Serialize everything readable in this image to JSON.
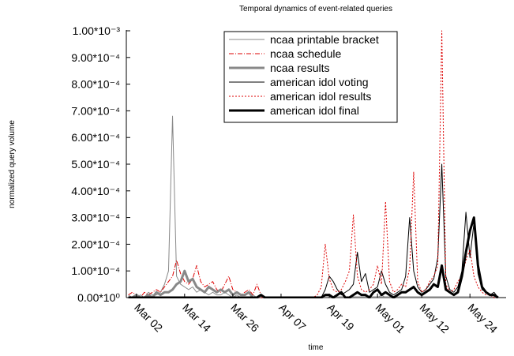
{
  "chart_data": {
    "type": "line",
    "title": "Temporal dynamics of event-related queries",
    "x_label": "time",
    "y_label": "normalized query volume",
    "legend": "upper center",
    "x": [
      -1,
      0,
      1,
      2,
      3,
      4,
      5,
      6,
      7,
      8,
      9,
      10,
      11,
      12,
      13,
      14,
      15,
      16,
      17,
      18,
      19,
      20,
      21,
      22,
      23,
      24,
      25,
      26,
      27,
      28,
      29,
      30,
      31,
      32,
      33,
      34,
      35,
      36,
      37,
      38,
      39,
      40,
      41,
      42,
      43,
      44,
      45,
      46,
      47,
      48,
      49,
      50,
      51,
      52,
      53,
      54,
      55,
      56,
      57,
      58,
      59,
      60,
      61,
      62,
      63,
      64,
      65,
      66,
      67,
      68,
      69,
      70,
      71,
      72,
      73,
      74,
      75,
      76,
      77,
      78,
      79,
      80,
      81,
      82,
      83,
      84,
      85,
      86,
      87,
      88,
      89,
      90,
      91
    ],
    "xlim": [
      -1.5,
      93
    ],
    "xticks": [
      {
        "value": 1,
        "label": "Mar 02"
      },
      {
        "value": 13,
        "label": "Mar 14"
      },
      {
        "value": 25,
        "label": "Mar 26"
      },
      {
        "value": 37,
        "label": "Apr 07"
      },
      {
        "value": 49,
        "label": "Apr 19"
      },
      {
        "value": 61,
        "label": "May 01"
      },
      {
        "value": 72,
        "label": "May 12"
      },
      {
        "value": 84,
        "label": "May 24"
      }
    ],
    "ylim": [
      0,
      0.001
    ],
    "yticks": [
      {
        "value": 0,
        "label": "0.00*10⁰"
      },
      {
        "value": 0.0001,
        "label": "1.00*10⁻⁴"
      },
      {
        "value": 0.0002,
        "label": "2.00*10⁻⁴"
      },
      {
        "value": 0.0003,
        "label": "3.00*10⁻⁴"
      },
      {
        "value": 0.0004,
        "label": "4.00*10⁻⁴"
      },
      {
        "value": 0.0005,
        "label": "5.00*10⁻⁴"
      },
      {
        "value": 0.0006,
        "label": "6.00*10⁻⁴"
      },
      {
        "value": 0.0007,
        "label": "7.00*10⁻⁴"
      },
      {
        "value": 0.0008,
        "label": "8.00*10⁻⁴"
      },
      {
        "value": 0.0009,
        "label": "9.00*10⁻⁴"
      },
      {
        "value": 0.001,
        "label": "1.00*10⁻³"
      }
    ],
    "series": [
      {
        "name": "ncaa printable bracket",
        "color": "#888888",
        "line_width": 1,
        "line_style": "solid",
        "values": [
          1e-05,
          0,
          0,
          1e-05,
          0,
          2e-05,
          1e-05,
          1e-05,
          2e-05,
          5e-05,
          0.0001,
          0.00068,
          8e-05,
          5e-05,
          4e-05,
          3e-05,
          4e-05,
          2e-05,
          3e-05,
          2e-05,
          1e-05,
          2e-05,
          1e-05,
          1e-05,
          2e-05,
          1e-05,
          0,
          1e-05,
          0,
          0,
          0,
          1e-05,
          0,
          0,
          0,
          0,
          0,
          0,
          0,
          0,
          0,
          0,
          0,
          0,
          0,
          0,
          0,
          0,
          0,
          0,
          0,
          0,
          0,
          0,
          0,
          0,
          0,
          0,
          0,
          0,
          0,
          0,
          0,
          1e-05,
          0,
          0,
          0,
          0,
          0,
          0,
          0,
          0,
          0,
          0,
          0,
          0,
          0,
          0,
          0,
          0,
          0,
          0,
          0,
          0,
          0,
          0,
          0,
          0,
          0,
          0,
          0,
          0,
          0
        ]
      },
      {
        "name": "ncaa schedule",
        "color": "#dd0000",
        "line_width": 1,
        "line_style": "dashdot",
        "values": [
          1e-05,
          2e-05,
          1e-05,
          0,
          2e-05,
          1e-05,
          2e-05,
          3e-05,
          2e-05,
          4e-05,
          6e-05,
          8e-05,
          0.00014,
          9e-05,
          6e-05,
          5e-05,
          7e-05,
          0.00012,
          6e-05,
          4e-05,
          5e-05,
          6e-05,
          3e-05,
          2e-05,
          5e-05,
          8e-05,
          3e-05,
          2e-05,
          1e-05,
          2e-05,
          3e-05,
          1e-05,
          5e-05,
          1e-05,
          0,
          0,
          0,
          0,
          0,
          0,
          0,
          0,
          0,
          0,
          0,
          0,
          0,
          0,
          0,
          0,
          0,
          0,
          0,
          0,
          0,
          0,
          0,
          0,
          0,
          0,
          0,
          0,
          0,
          0,
          0,
          0,
          0,
          0,
          0,
          0,
          0,
          0,
          0,
          0,
          0,
          0,
          0,
          0,
          0,
          0,
          0,
          0,
          0,
          0,
          0,
          0,
          0,
          0,
          0,
          0,
          0,
          0,
          0
        ]
      },
      {
        "name": "ncaa results",
        "color": "#888888",
        "line_width": 3,
        "line_style": "solid",
        "values": [
          0,
          0,
          1e-05,
          0,
          0,
          1e-05,
          0,
          2e-05,
          1e-05,
          2e-05,
          2e-05,
          3e-05,
          5e-05,
          6e-05,
          0.0001,
          6e-05,
          7e-05,
          4e-05,
          3e-05,
          2e-05,
          4e-05,
          3e-05,
          2e-05,
          3e-05,
          2e-05,
          3e-05,
          1e-05,
          2e-05,
          1e-05,
          1e-05,
          2e-05,
          0,
          0,
          0,
          0,
          0,
          0,
          0,
          0,
          0,
          0,
          0,
          0,
          0,
          0,
          0,
          0,
          0,
          0,
          0,
          0,
          0,
          0,
          0,
          0,
          0,
          0,
          0,
          0,
          0,
          0,
          0,
          0,
          0,
          0,
          0,
          0,
          0,
          0,
          0,
          0,
          0,
          0,
          0,
          0,
          0,
          0,
          0,
          0,
          0,
          0,
          0,
          0,
          0,
          0,
          0,
          0,
          0,
          0,
          0,
          0,
          0,
          0
        ]
      },
      {
        "name": "american idol voting",
        "color": "#000000",
        "line_width": 1,
        "line_style": "solid",
        "values": [
          0,
          0,
          0,
          0,
          0,
          0,
          0,
          0,
          0,
          0,
          0,
          0,
          0,
          0,
          0,
          0,
          0,
          0,
          0,
          0,
          0,
          0,
          0,
          0,
          0,
          0,
          0,
          0,
          0,
          0,
          0,
          0,
          0,
          1e-05,
          0,
          0,
          0,
          0,
          0,
          0,
          0,
          0,
          0,
          0,
          0,
          0,
          0,
          0,
          0,
          3e-05,
          8e-05,
          6e-05,
          3e-05,
          1e-05,
          2e-05,
          3e-05,
          5e-05,
          0.00017,
          6e-05,
          9e-05,
          2e-05,
          3e-05,
          4e-05,
          0.0001,
          5e-05,
          2e-05,
          1e-05,
          2e-05,
          3e-05,
          8e-05,
          0.0003,
          0.0001,
          4e-05,
          2e-05,
          3e-05,
          5e-05,
          7e-05,
          0.00015,
          0.0005,
          8e-05,
          3e-05,
          2e-05,
          4e-05,
          0.0001,
          0.00032,
          0.00015,
          0.00028,
          9e-05,
          3e-05,
          2e-05,
          1e-05,
          2e-05,
          0
        ]
      },
      {
        "name": "american idol results",
        "color": "#dd0000",
        "line_width": 1,
        "line_style": "dotted",
        "values": [
          0,
          0,
          0,
          0,
          0,
          0,
          0,
          0,
          0,
          0,
          0,
          0,
          0,
          0,
          0,
          0,
          0,
          0,
          0,
          0,
          0,
          0,
          0,
          0,
          0,
          0,
          0,
          0,
          0,
          0,
          0,
          0,
          0,
          0,
          0,
          0,
          0,
          0,
          0,
          0,
          0,
          0,
          0,
          0,
          0,
          0,
          0,
          1e-05,
          4e-05,
          0.0002,
          7e-05,
          3e-05,
          2e-05,
          3e-05,
          6e-05,
          0.0001,
          0.00031,
          8e-05,
          3e-05,
          2e-05,
          3e-05,
          5e-05,
          0.00012,
          5e-05,
          0.00036,
          6e-05,
          2e-05,
          3e-05,
          5e-05,
          4e-05,
          0.00011,
          0.00047,
          6e-05,
          2e-05,
          3e-05,
          6e-05,
          8e-05,
          0.00012,
          0.001,
          5e-05,
          2e-05,
          3e-05,
          6e-05,
          8e-05,
          0.00014,
          0.00018,
          8e-05,
          4e-05,
          2e-05,
          1e-05,
          1e-05,
          0,
          0
        ]
      },
      {
        "name": "american idol final",
        "color": "#000000",
        "line_width": 3,
        "line_style": "solid",
        "values": [
          0,
          0,
          0,
          0,
          0,
          0,
          0,
          0,
          0,
          0,
          0,
          0,
          0,
          0,
          0,
          0,
          0,
          0,
          0,
          0,
          0,
          0,
          0,
          0,
          0,
          0,
          0,
          0,
          0,
          0,
          0,
          0,
          0,
          1e-05,
          0,
          0,
          0,
          0,
          0,
          0,
          0,
          0,
          0,
          0,
          0,
          0,
          0,
          0,
          0,
          1e-05,
          1e-05,
          0,
          1e-05,
          2e-05,
          0,
          0,
          1e-05,
          2e-05,
          1e-05,
          1e-05,
          0,
          2e-05,
          3e-05,
          1e-05,
          2e-05,
          1e-05,
          0,
          1e-05,
          2e-05,
          2e-05,
          3e-05,
          4e-05,
          2e-05,
          1e-05,
          2e-05,
          3e-05,
          5e-05,
          4e-05,
          0.00012,
          3e-05,
          2e-05,
          1e-05,
          2e-05,
          8e-05,
          0.00017,
          0.00025,
          0.0003,
          0.00012,
          4e-05,
          2e-05,
          1e-05,
          1e-05,
          0
        ]
      }
    ]
  }
}
